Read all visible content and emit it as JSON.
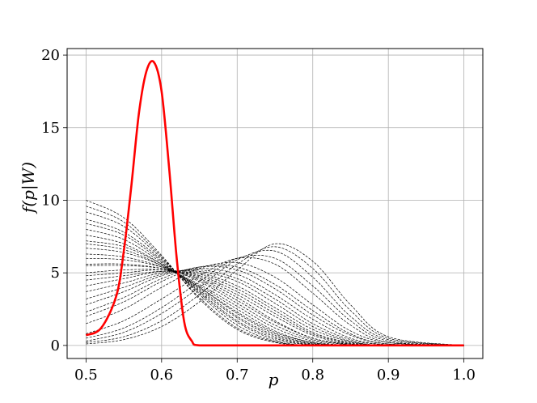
{
  "chart_data": {
    "type": "line",
    "xlabel": "p",
    "ylabel": "f(p|W)",
    "xlim": [
      0.475,
      1.025
    ],
    "ylim": [
      -0.9,
      20.45
    ],
    "xticks": [
      0.5,
      0.6,
      0.7,
      0.8,
      0.9,
      1.0
    ],
    "xtick_labels": [
      "0.5",
      "0.6",
      "0.7",
      "0.8",
      "0.9",
      "1.0"
    ],
    "yticks": [
      0,
      5,
      10,
      15,
      20
    ],
    "ytick_labels": [
      "0",
      "5",
      "10",
      "15",
      "20"
    ],
    "grid": true,
    "highlight": {
      "color": "#ff0000",
      "line_style": "solid",
      "x": [
        0.5,
        0.52,
        0.54,
        0.55,
        0.56,
        0.57,
        0.58,
        0.59,
        0.6,
        0.61,
        0.62,
        0.63,
        0.64,
        0.65,
        0.7,
        0.8,
        0.9,
        1.0
      ],
      "y": [
        0.7,
        1.2,
        3.4,
        6.5,
        11.0,
        16.0,
        18.9,
        19.5,
        17.5,
        12.2,
        6.0,
        1.6,
        0.3,
        0.0,
        0.0,
        0.0,
        0.0,
        0.0
      ]
    },
    "series_style": {
      "color": "#000000",
      "line_style": "dashed"
    },
    "series": [
      {
        "x": [
          0.5,
          0.55,
          0.6,
          0.65,
          0.7,
          0.75,
          0.8,
          0.85,
          0.9,
          1.0
        ],
        "y": [
          10.0,
          8.8,
          6.2,
          3.2,
          1.1,
          0.2,
          0.0,
          0.0,
          0.0,
          0.0
        ]
      },
      {
        "x": [
          0.5,
          0.55,
          0.6,
          0.65,
          0.7,
          0.75,
          0.8,
          0.85,
          0.9,
          1.0
        ],
        "y": [
          9.6,
          8.5,
          6.1,
          3.3,
          1.2,
          0.25,
          0.0,
          0.0,
          0.0,
          0.0
        ]
      },
      {
        "x": [
          0.5,
          0.55,
          0.6,
          0.65,
          0.7,
          0.75,
          0.8,
          0.85,
          0.9,
          1.0
        ],
        "y": [
          9.2,
          8.2,
          6.0,
          3.5,
          1.4,
          0.3,
          0.0,
          0.0,
          0.0,
          0.0
        ]
      },
      {
        "x": [
          0.5,
          0.55,
          0.6,
          0.65,
          0.7,
          0.75,
          0.8,
          0.85,
          0.9,
          1.0
        ],
        "y": [
          8.7,
          7.8,
          5.9,
          3.6,
          1.6,
          0.4,
          0.05,
          0.0,
          0.0,
          0.0
        ]
      },
      {
        "x": [
          0.5,
          0.55,
          0.6,
          0.65,
          0.7,
          0.75,
          0.8,
          0.85,
          0.9,
          1.0
        ],
        "y": [
          8.4,
          7.6,
          5.8,
          3.7,
          1.7,
          0.5,
          0.05,
          0.0,
          0.0,
          0.0
        ]
      },
      {
        "x": [
          0.5,
          0.55,
          0.6,
          0.65,
          0.7,
          0.75,
          0.8,
          0.85,
          0.9,
          1.0
        ],
        "y": [
          8.0,
          7.3,
          5.7,
          3.8,
          1.9,
          0.6,
          0.1,
          0.0,
          0.0,
          0.0
        ]
      },
      {
        "x": [
          0.5,
          0.55,
          0.6,
          0.65,
          0.7,
          0.75,
          0.8,
          0.85,
          0.9,
          1.0
        ],
        "y": [
          7.6,
          7.0,
          5.6,
          3.9,
          2.0,
          0.7,
          0.1,
          0.0,
          0.0,
          0.0
        ]
      },
      {
        "x": [
          0.5,
          0.55,
          0.6,
          0.65,
          0.7,
          0.75,
          0.8,
          0.85,
          0.9,
          1.0
        ],
        "y": [
          7.2,
          6.8,
          5.6,
          4.0,
          2.2,
          0.8,
          0.15,
          0.0,
          0.0,
          0.0
        ]
      },
      {
        "x": [
          0.5,
          0.55,
          0.6,
          0.65,
          0.7,
          0.75,
          0.8,
          0.85,
          0.9,
          1.0
        ],
        "y": [
          7.0,
          6.6,
          5.5,
          4.0,
          2.3,
          0.9,
          0.2,
          0.0,
          0.0,
          0.0
        ]
      },
      {
        "x": [
          0.5,
          0.55,
          0.6,
          0.65,
          0.7,
          0.75,
          0.8,
          0.85,
          0.9,
          1.0
        ],
        "y": [
          6.7,
          6.4,
          5.5,
          4.1,
          2.5,
          1.0,
          0.2,
          0.0,
          0.0,
          0.0
        ]
      },
      {
        "x": [
          0.5,
          0.55,
          0.6,
          0.65,
          0.7,
          0.75,
          0.8,
          0.85,
          0.9,
          1.0
        ],
        "y": [
          6.3,
          6.1,
          5.4,
          4.2,
          2.7,
          1.2,
          0.3,
          0.0,
          0.0,
          0.0
        ]
      },
      {
        "x": [
          0.5,
          0.55,
          0.6,
          0.65,
          0.7,
          0.75,
          0.8,
          0.85,
          0.9,
          1.0
        ],
        "y": [
          6.0,
          5.9,
          5.4,
          4.4,
          2.9,
          1.4,
          0.4,
          0.05,
          0.0,
          0.0
        ]
      },
      {
        "x": [
          0.5,
          0.55,
          0.6,
          0.65,
          0.7,
          0.75,
          0.8,
          0.85,
          0.9,
          1.0
        ],
        "y": [
          5.6,
          5.6,
          5.3,
          4.5,
          3.1,
          1.6,
          0.5,
          0.05,
          0.0,
          0.0
        ]
      },
      {
        "x": [
          0.5,
          0.55,
          0.6,
          0.65,
          0.7,
          0.75,
          0.8,
          0.85,
          0.9,
          1.0
        ],
        "y": [
          5.5,
          5.5,
          5.3,
          4.6,
          3.3,
          1.7,
          0.5,
          0.1,
          0.0,
          0.0
        ]
      },
      {
        "x": [
          0.5,
          0.55,
          0.6,
          0.65,
          0.7,
          0.75,
          0.8,
          0.85,
          0.9,
          1.0
        ],
        "y": [
          5.0,
          5.2,
          5.2,
          4.7,
          3.5,
          2.0,
          0.7,
          0.1,
          0.0,
          0.0
        ]
      },
      {
        "x": [
          0.5,
          0.55,
          0.6,
          0.65,
          0.7,
          0.75,
          0.8,
          0.85,
          0.9,
          1.0
        ],
        "y": [
          4.8,
          5.0,
          5.2,
          4.8,
          3.7,
          2.2,
          0.8,
          0.15,
          0.0,
          0.0
        ]
      },
      {
        "x": [
          0.5,
          0.55,
          0.6,
          0.65,
          0.7,
          0.75,
          0.8,
          0.85,
          0.9,
          1.0
        ],
        "y": [
          4.5,
          4.8,
          5.1,
          4.9,
          3.9,
          2.4,
          0.9,
          0.2,
          0.0,
          0.0
        ]
      },
      {
        "x": [
          0.5,
          0.55,
          0.6,
          0.65,
          0.7,
          0.75,
          0.8,
          0.85,
          0.9,
          1.0
        ],
        "y": [
          4.1,
          4.6,
          5.1,
          5.0,
          4.1,
          2.6,
          1.1,
          0.25,
          0.0,
          0.0
        ]
      },
      {
        "x": [
          0.5,
          0.55,
          0.6,
          0.65,
          0.7,
          0.75,
          0.8,
          0.85,
          0.9,
          1.0
        ],
        "y": [
          3.7,
          4.3,
          5.0,
          5.1,
          4.4,
          2.9,
          1.3,
          0.3,
          0.0,
          0.0
        ]
      },
      {
        "x": [
          0.5,
          0.55,
          0.6,
          0.65,
          0.7,
          0.75,
          0.8,
          0.85,
          0.9,
          1.0
        ],
        "y": [
          3.2,
          4.0,
          4.9,
          5.2,
          4.6,
          3.2,
          1.5,
          0.4,
          0.05,
          0.0
        ]
      },
      {
        "x": [
          0.5,
          0.55,
          0.6,
          0.65,
          0.7,
          0.75,
          0.8,
          0.85,
          0.9,
          1.0
        ],
        "y": [
          2.8,
          3.7,
          4.8,
          5.3,
          4.9,
          3.5,
          1.8,
          0.5,
          0.05,
          0.0
        ]
      },
      {
        "x": [
          0.5,
          0.55,
          0.6,
          0.65,
          0.7,
          0.75,
          0.8,
          0.85,
          0.9,
          1.0
        ],
        "y": [
          2.3,
          3.3,
          4.6,
          5.4,
          5.2,
          3.9,
          2.1,
          0.7,
          0.1,
          0.0
        ]
      },
      {
        "x": [
          0.5,
          0.55,
          0.6,
          0.65,
          0.7,
          0.75,
          0.8,
          0.85,
          0.9,
          1.0
        ],
        "y": [
          2.0,
          3.0,
          4.4,
          5.4,
          5.4,
          4.2,
          2.4,
          0.8,
          0.1,
          0.0
        ]
      },
      {
        "x": [
          0.5,
          0.55,
          0.6,
          0.65,
          0.7,
          0.75,
          0.8,
          0.85,
          0.9,
          1.0
        ],
        "y": [
          1.5,
          2.5,
          4.0,
          5.3,
          5.7,
          4.7,
          2.8,
          1.0,
          0.2,
          0.0
        ]
      },
      {
        "x": [
          0.5,
          0.55,
          0.6,
          0.65,
          0.7,
          0.75,
          0.8,
          0.85,
          0.9,
          1.0
        ],
        "y": [
          0.8,
          1.7,
          3.2,
          4.8,
          6.0,
          5.6,
          3.6,
          1.4,
          0.2,
          0.0
        ]
      },
      {
        "x": [
          0.5,
          0.55,
          0.6,
          0.65,
          0.7,
          0.75,
          0.8,
          0.85,
          0.9,
          1.0
        ],
        "y": [
          0.5,
          1.2,
          2.6,
          4.4,
          6.0,
          6.0,
          4.1,
          1.7,
          0.3,
          0.0
        ]
      },
      {
        "x": [
          0.5,
          0.55,
          0.6,
          0.65,
          0.7,
          0.75,
          0.8,
          0.85,
          0.9,
          1.0
        ],
        "y": [
          0.3,
          0.9,
          2.2,
          4.0,
          5.9,
          6.5,
          4.7,
          2.0,
          0.4,
          0.0
        ]
      },
      {
        "x": [
          0.5,
          0.55,
          0.6,
          0.65,
          0.7,
          0.75,
          0.8,
          0.85,
          0.9,
          1.0
        ],
        "y": [
          0.2,
          0.6,
          1.7,
          3.5,
          5.6,
          6.8,
          5.3,
          2.4,
          0.5,
          0.0
        ]
      },
      {
        "x": [
          0.5,
          0.55,
          0.6,
          0.65,
          0.7,
          0.75,
          0.8,
          0.85,
          0.9,
          1.0
        ],
        "y": [
          0.1,
          0.4,
          1.3,
          3.0,
          5.2,
          7.0,
          5.8,
          2.8,
          0.6,
          0.0
        ]
      }
    ]
  }
}
